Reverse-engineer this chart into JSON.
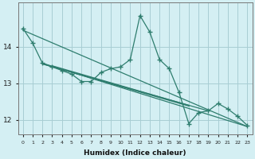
{
  "xlabel": "Humidex (Indice chaleur)",
  "bg_color": "#d4eff3",
  "grid_color": "#a8cdd4",
  "line_color": "#2e7d6e",
  "x_values": [
    0,
    1,
    2,
    3,
    4,
    5,
    6,
    7,
    8,
    9,
    10,
    11,
    12,
    13,
    14,
    15,
    16,
    17,
    18,
    19,
    20,
    21,
    22,
    23
  ],
  "main_line": [
    14.5,
    14.1,
    13.55,
    13.45,
    13.35,
    13.25,
    13.05,
    13.05,
    13.3,
    13.4,
    13.45,
    13.65,
    14.85,
    14.4,
    13.65,
    13.4,
    12.75,
    11.9,
    12.2,
    12.25,
    12.45,
    12.3,
    12.1,
    11.85
  ],
  "trend_line1_x": [
    0,
    23
  ],
  "trend_line1_y": [
    14.45,
    11.82
  ],
  "trend_line2_x": [
    2,
    23
  ],
  "trend_line2_y": [
    13.55,
    11.82
  ],
  "trend_line3_x": [
    2,
    17
  ],
  "trend_line3_y": [
    13.53,
    12.38
  ],
  "trend_line4_x": [
    2,
    19
  ],
  "trend_line4_y": [
    13.53,
    12.25
  ],
  "trend_line5_x": [
    3,
    17
  ],
  "trend_line5_y": [
    13.48,
    12.4
  ],
  "ylim": [
    11.6,
    15.2
  ],
  "yticks": [
    12,
    13,
    14
  ],
  "xticks": [
    0,
    1,
    2,
    3,
    4,
    5,
    6,
    7,
    8,
    9,
    10,
    11,
    12,
    13,
    14,
    15,
    16,
    17,
    18,
    19,
    20,
    21,
    22,
    23
  ]
}
